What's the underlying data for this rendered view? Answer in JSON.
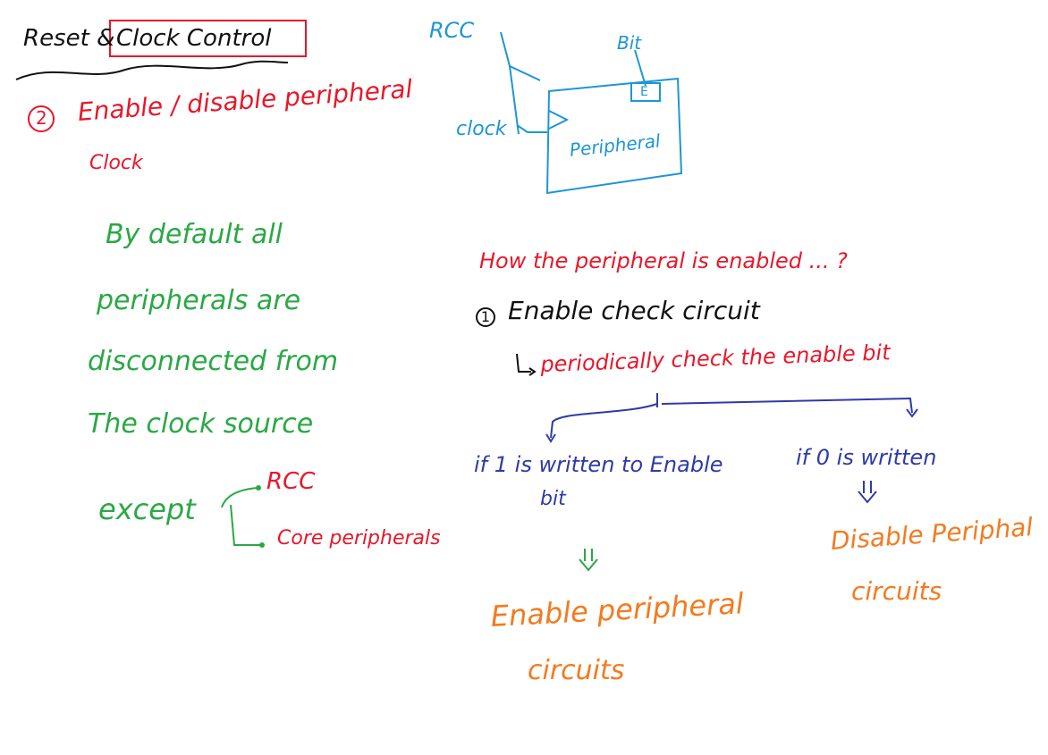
{
  "title": {
    "prefix": "Reset &",
    "boxed": "Clock Control"
  },
  "left": {
    "section_number": "2",
    "section_heading": "Enable / disable peripheral",
    "section_heading_cont": "Clock",
    "default_lines": [
      "By default all",
      "peripherals are",
      "disconnected from",
      "The clock source"
    ],
    "except_label": "except",
    "except_items": [
      "RCC",
      "Core peripherals"
    ]
  },
  "diagram": {
    "rcc_label": "RCC",
    "bit_label": "Bit",
    "enable_box": "E",
    "clock_label": "clock",
    "peripheral_label": "Peripheral"
  },
  "right": {
    "question": "How the peripheral is enabled ... ?",
    "step_number": "1",
    "step_heading": "Enable check circuit",
    "periodic": "periodically check the enable bit",
    "branch_left_1": "if 1 is written to Enable",
    "branch_left_2": "bit",
    "branch_right": "if 0 is written",
    "result_left_1": "Enable peripheral",
    "result_left_2": "circuits",
    "result_right_1": "Disable Periphal",
    "result_right_2": "circuits"
  },
  "colors": {
    "black": "#111111",
    "red": "#e8172a",
    "green": "#2aa845",
    "blue": "#1d96d6",
    "navy": "#2f3aa8",
    "orange": "#f47a1f"
  }
}
